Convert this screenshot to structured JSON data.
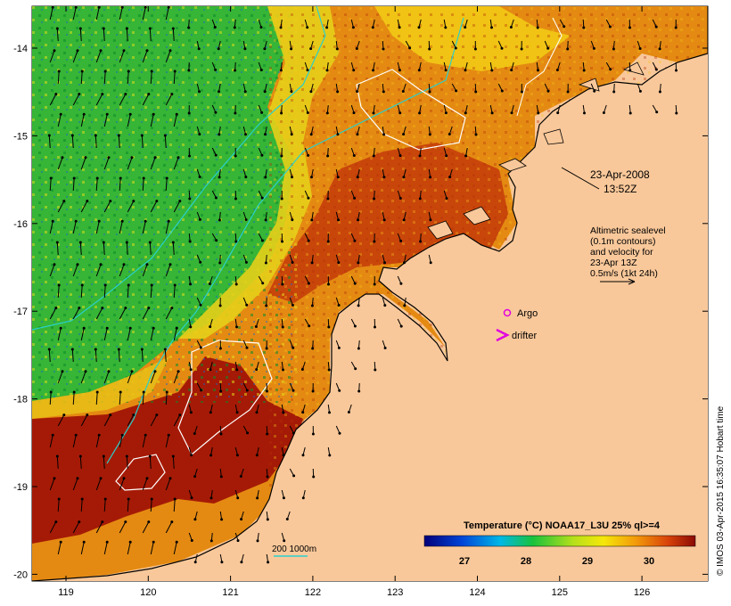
{
  "map": {
    "lat_ticks": [
      "-14",
      "-15",
      "-16",
      "-17",
      "-18",
      "-19",
      "-20"
    ],
    "lon_ticks": [
      "119",
      "120",
      "121",
      "122",
      "123",
      "124",
      "125",
      "126"
    ],
    "timestamp": {
      "date": "23-Apr-2008",
      "time": "13:52Z"
    },
    "altimetry_note": [
      "Altimetric sealevel",
      "(0.1m contours)",
      "and velocity for",
      "23-Apr 13Z",
      "0.5m/s (1kt 24h)"
    ],
    "argo_label": "Argo",
    "drifter_label": "drifter",
    "bathymetry_label": "200  1000m",
    "colorbar": {
      "title": "Temperature (°C) NOAA17_L3U 25% ql>=4",
      "ticks": [
        "27",
        "28",
        "29",
        "30"
      ]
    },
    "credit": "© IMOS 03-Apr-2015 16:35:07 Hobart time",
    "colors": {
      "land": "#f9c89a",
      "cool": "#2fb93a",
      "mid": "#f2c51a",
      "warm": "#e07a10",
      "hot": "#9a1405",
      "contour": "#ffffff",
      "isobath": "#2ad0cc",
      "argo": "#e100e1"
    }
  }
}
